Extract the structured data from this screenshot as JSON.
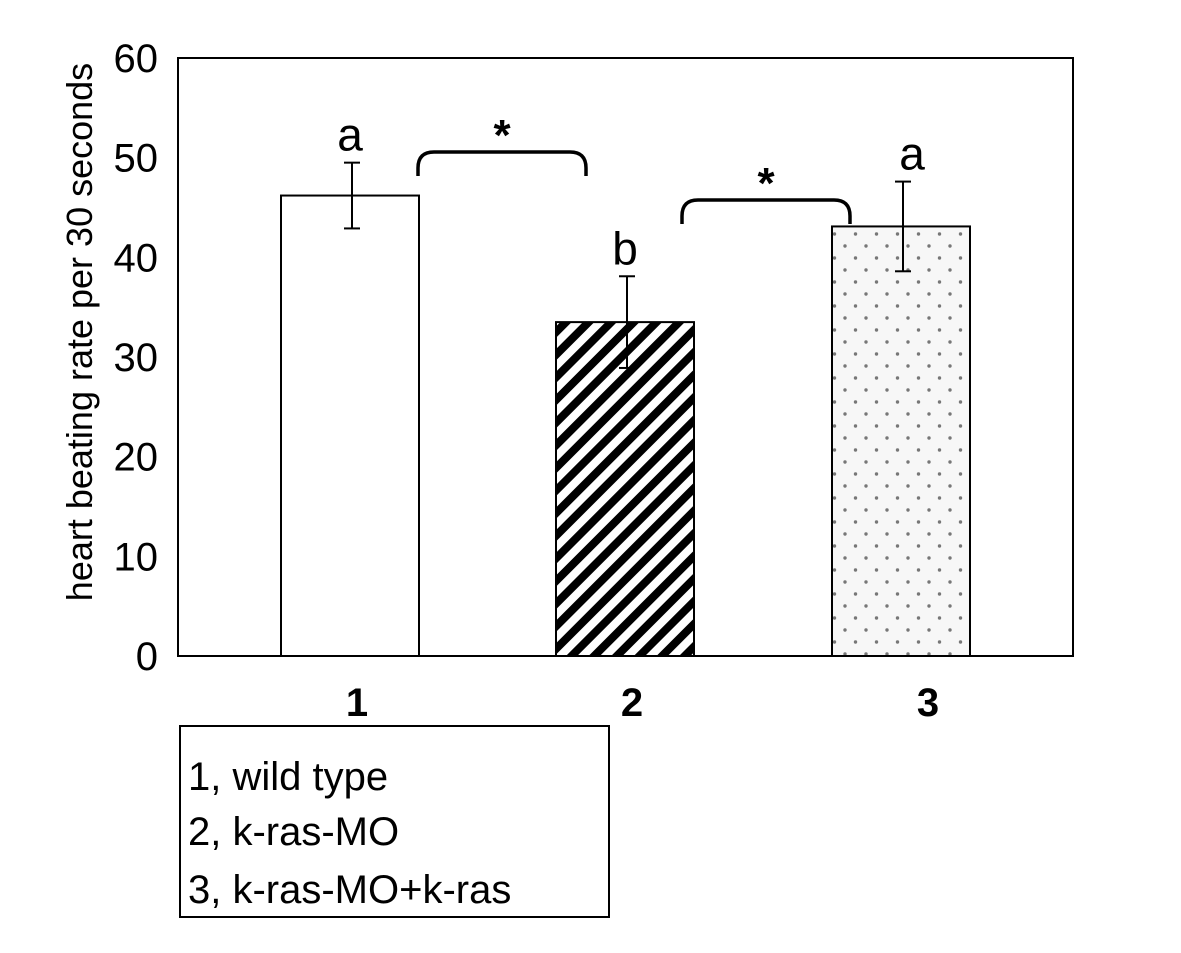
{
  "chart_data": {
    "type": "bar",
    "categories": [
      "1",
      "2",
      "3"
    ],
    "values": [
      46.2,
      33.5,
      43.1
    ],
    "errors": [
      3.3,
      4.6,
      4.5
    ],
    "patterns": [
      "none",
      "diagonal-stripes",
      "dots"
    ],
    "sig_letters": [
      "a",
      "b",
      "a"
    ],
    "significance_brackets": [
      {
        "between": [
          "1",
          "2"
        ],
        "label": "*"
      },
      {
        "between": [
          "2",
          "3"
        ],
        "label": "*"
      }
    ],
    "title": "",
    "xlabel": "",
    "ylabel": "heart beating rate per 30 seconds",
    "ylim": [
      0,
      60
    ],
    "yticks": [
      0,
      10,
      20,
      30,
      40,
      50,
      60
    ],
    "grid": false,
    "legend_position": "bottom-left",
    "legend": [
      "1, wild type",
      "2, k-ras-MO",
      "3, k-ras-MO+k-ras"
    ]
  }
}
